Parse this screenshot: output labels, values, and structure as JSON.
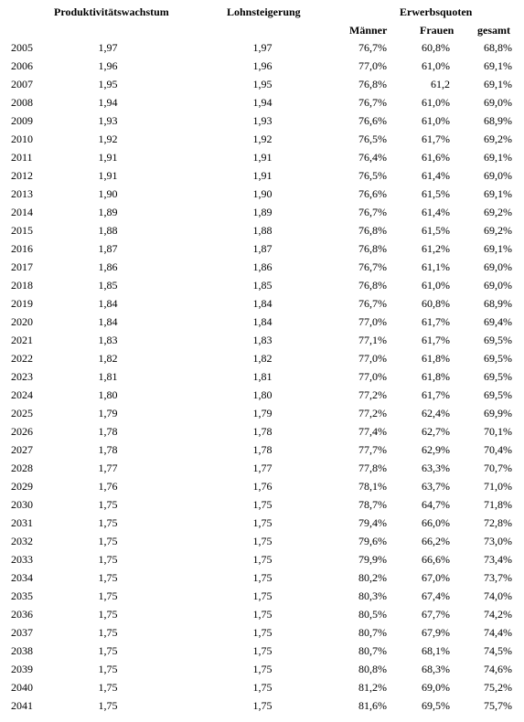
{
  "headers": {
    "produktivitaet": "Produktivitätswachstum",
    "lohn": "Lohnsteigerung",
    "erwerb": "Erwerbsquoten",
    "maenner": "Männer",
    "frauen": "Frauen",
    "gesamt": "gesamt"
  },
  "rows": [
    {
      "year": "2005",
      "prod": "1,97",
      "lohn": "1,97",
      "m": "76,7%",
      "f": "60,8%",
      "g": "68,8%"
    },
    {
      "year": "2006",
      "prod": "1,96",
      "lohn": "1,96",
      "m": "77,0%",
      "f": "61,0%",
      "g": "69,1%"
    },
    {
      "year": "2007",
      "prod": "1,95",
      "lohn": "1,95",
      "m": "76,8%",
      "f": "61,2",
      "g": "69,1%"
    },
    {
      "year": "2008",
      "prod": "1,94",
      "lohn": "1,94",
      "m": "76,7%",
      "f": "61,0%",
      "g": "69,0%"
    },
    {
      "year": "2009",
      "prod": "1,93",
      "lohn": "1,93",
      "m": "76,6%",
      "f": "61,0%",
      "g": "68,9%"
    },
    {
      "year": "2010",
      "prod": "1,92",
      "lohn": "1,92",
      "m": "76,5%",
      "f": "61,7%",
      "g": "69,2%"
    },
    {
      "year": "2011",
      "prod": "1,91",
      "lohn": "1,91",
      "m": "76,4%",
      "f": "61,6%",
      "g": "69,1%"
    },
    {
      "year": "2012",
      "prod": "1,91",
      "lohn": "1,91",
      "m": "76,5%",
      "f": "61,4%",
      "g": "69,0%"
    },
    {
      "year": "2013",
      "prod": "1,90",
      "lohn": "1,90",
      "m": "76,6%",
      "f": "61,5%",
      "g": "69,1%"
    },
    {
      "year": "2014",
      "prod": "1,89",
      "lohn": "1,89",
      "m": "76,7%",
      "f": "61,4%",
      "g": "69,2%"
    },
    {
      "year": "2015",
      "prod": "1,88",
      "lohn": "1,88",
      "m": "76,8%",
      "f": "61,5%",
      "g": "69,2%"
    },
    {
      "year": "2016",
      "prod": "1,87",
      "lohn": "1,87",
      "m": "76,8%",
      "f": "61,2%",
      "g": "69,1%"
    },
    {
      "year": "2017",
      "prod": "1,86",
      "lohn": "1,86",
      "m": "76,7%",
      "f": "61,1%",
      "g": "69,0%"
    },
    {
      "year": "2018",
      "prod": "1,85",
      "lohn": "1,85",
      "m": "76,8%",
      "f": "61,0%",
      "g": "69,0%"
    },
    {
      "year": "2019",
      "prod": "1,84",
      "lohn": "1,84",
      "m": "76,7%",
      "f": "60,8%",
      "g": "68,9%"
    },
    {
      "year": "2020",
      "prod": "1,84",
      "lohn": "1,84",
      "m": "77,0%",
      "f": "61,7%",
      "g": "69,4%"
    },
    {
      "year": "2021",
      "prod": "1,83",
      "lohn": "1,83",
      "m": "77,1%",
      "f": "61,7%",
      "g": "69,5%"
    },
    {
      "year": "2022",
      "prod": "1,82",
      "lohn": "1,82",
      "m": "77,0%",
      "f": "61,8%",
      "g": "69,5%"
    },
    {
      "year": "2023",
      "prod": "1,81",
      "lohn": "1,81",
      "m": "77,0%",
      "f": "61,8%",
      "g": "69,5%"
    },
    {
      "year": "2024",
      "prod": "1,80",
      "lohn": "1,80",
      "m": "77,2%",
      "f": "61,7%",
      "g": "69,5%"
    },
    {
      "year": "2025",
      "prod": "1,79",
      "lohn": "1,79",
      "m": "77,2%",
      "f": "62,4%",
      "g": "69,9%"
    },
    {
      "year": "2026",
      "prod": "1,78",
      "lohn": "1,78",
      "m": "77,4%",
      "f": "62,7%",
      "g": "70,1%"
    },
    {
      "year": "2027",
      "prod": "1,78",
      "lohn": "1,78",
      "m": "77,7%",
      "f": "62,9%",
      "g": "70,4%"
    },
    {
      "year": "2028",
      "prod": "1,77",
      "lohn": "1,77",
      "m": "77,8%",
      "f": "63,3%",
      "g": "70,7%"
    },
    {
      "year": "2029",
      "prod": "1,76",
      "lohn": "1,76",
      "m": "78,1%",
      "f": "63,7%",
      "g": "71,0%"
    },
    {
      "year": "2030",
      "prod": "1,75",
      "lohn": "1,75",
      "m": "78,7%",
      "f": "64,7%",
      "g": "71,8%"
    },
    {
      "year": "2031",
      "prod": "1,75",
      "lohn": "1,75",
      "m": "79,4%",
      "f": "66,0%",
      "g": "72,8%"
    },
    {
      "year": "2032",
      "prod": "1,75",
      "lohn": "1,75",
      "m": "79,6%",
      "f": "66,2%",
      "g": "73,0%"
    },
    {
      "year": "2033",
      "prod": "1,75",
      "lohn": "1,75",
      "m": "79,9%",
      "f": "66,6%",
      "g": "73,4%"
    },
    {
      "year": "2034",
      "prod": "1,75",
      "lohn": "1,75",
      "m": "80,2%",
      "f": "67,0%",
      "g": "73,7%"
    },
    {
      "year": "2035",
      "prod": "1,75",
      "lohn": "1,75",
      "m": "80,3%",
      "f": "67,4%",
      "g": "74,0%"
    },
    {
      "year": "2036",
      "prod": "1,75",
      "lohn": "1,75",
      "m": "80,5%",
      "f": "67,7%",
      "g": "74,2%"
    },
    {
      "year": "2037",
      "prod": "1,75",
      "lohn": "1,75",
      "m": "80,7%",
      "f": "67,9%",
      "g": "74,4%"
    },
    {
      "year": "2038",
      "prod": "1,75",
      "lohn": "1,75",
      "m": "80,7%",
      "f": "68,1%",
      "g": "74,5%"
    },
    {
      "year": "2039",
      "prod": "1,75",
      "lohn": "1,75",
      "m": "80,8%",
      "f": "68,3%",
      "g": "74,6%"
    },
    {
      "year": "2040",
      "prod": "1,75",
      "lohn": "1,75",
      "m": "81,2%",
      "f": "69,0%",
      "g": "75,2%"
    },
    {
      "year": "2041",
      "prod": "1,75",
      "lohn": "1,75",
      "m": "81,6%",
      "f": "69,5%",
      "g": "75,7%"
    }
  ]
}
